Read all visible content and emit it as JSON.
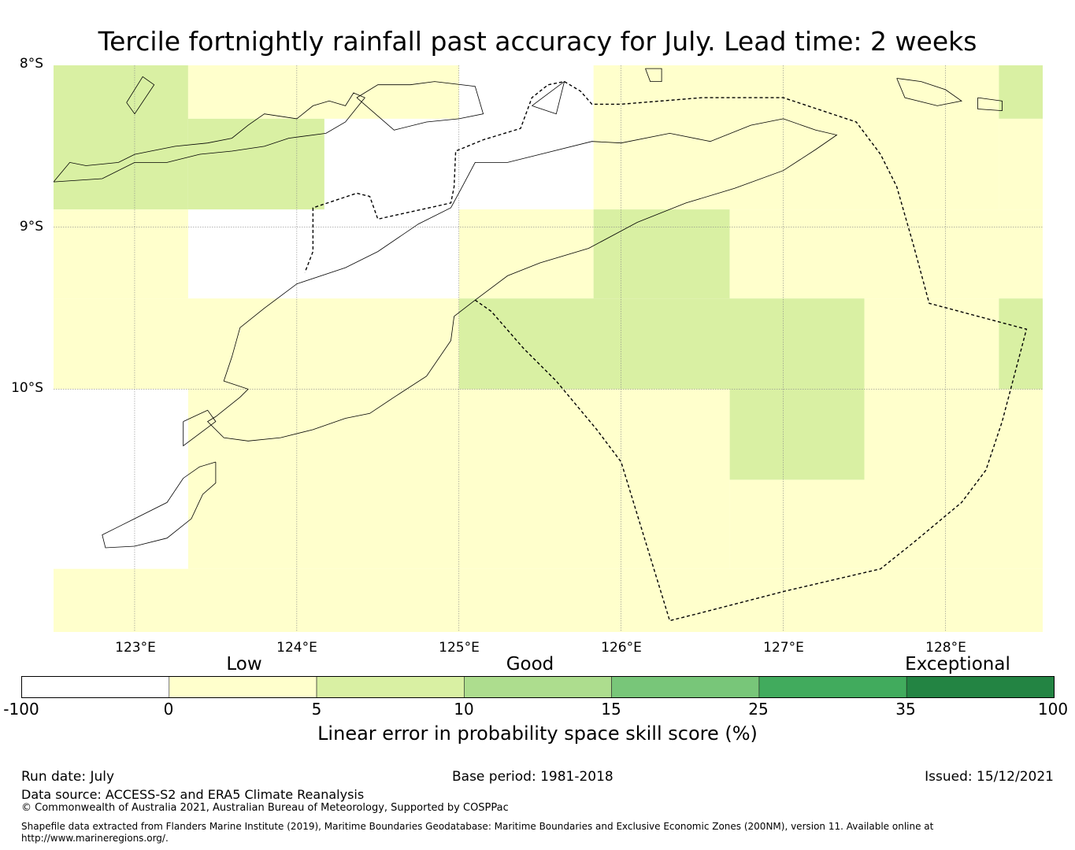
{
  "title": "Tercile fortnightly rainfall past accuracy for July. Lead time: 2 weeks",
  "map": {
    "lon_range": [
      122.5,
      128.6
    ],
    "lat_range": [
      -11.5,
      -8.0
    ],
    "lat_labels": [
      "8°S",
      "9°S",
      "10°S"
    ],
    "lon_labels": [
      "123°E",
      "124°E",
      "125°E",
      "126°E",
      "127°E",
      "128°E"
    ],
    "grid_cell_deg": 0.833,
    "cells": [
      {
        "lon": [
          122.5,
          123.33
        ],
        "lat": [
          -8.0,
          -8.89
        ],
        "category": "5-10"
      },
      {
        "lon": [
          123.33,
          125.0
        ],
        "lat": [
          -8.0,
          -8.33
        ],
        "category": "0-5"
      },
      {
        "lon": [
          123.33,
          124.17
        ],
        "lat": [
          -8.33,
          -8.89
        ],
        "category": "5-10"
      },
      {
        "lon": [
          125.83,
          128.33
        ],
        "lat": [
          -8.0,
          -8.89
        ],
        "category": "0-5"
      },
      {
        "lon": [
          128.33,
          128.6
        ],
        "lat": [
          -8.0,
          -8.33
        ],
        "category": "5-10"
      },
      {
        "lon": [
          128.33,
          128.6
        ],
        "lat": [
          -8.33,
          -8.89
        ],
        "category": "0-5"
      },
      {
        "lon": [
          122.5,
          123.33
        ],
        "lat": [
          -8.89,
          -9.44
        ],
        "category": "0-5"
      },
      {
        "lon": [
          125.0,
          125.83
        ],
        "lat": [
          -8.89,
          -9.44
        ],
        "category": "0-5"
      },
      {
        "lon": [
          125.83,
          126.67
        ],
        "lat": [
          -8.89,
          -9.44
        ],
        "category": "5-10"
      },
      {
        "lon": [
          126.67,
          128.6
        ],
        "lat": [
          -8.89,
          -9.44
        ],
        "category": "0-5"
      },
      {
        "lon": [
          122.5,
          125.0
        ],
        "lat": [
          -9.44,
          -10.0
        ],
        "category": "0-5"
      },
      {
        "lon": [
          125.0,
          127.5
        ],
        "lat": [
          -9.44,
          -10.0
        ],
        "category": "5-10"
      },
      {
        "lon": [
          127.5,
          128.33
        ],
        "lat": [
          -9.44,
          -10.0
        ],
        "category": "0-5"
      },
      {
        "lon": [
          128.33,
          128.6
        ],
        "lat": [
          -9.44,
          -10.0
        ],
        "category": "5-10"
      },
      {
        "lon": [
          123.33,
          126.67
        ],
        "lat": [
          -10.0,
          -11.11
        ],
        "category": "0-5"
      },
      {
        "lon": [
          126.67,
          127.5
        ],
        "lat": [
          -10.0,
          -10.56
        ],
        "category": "5-10"
      },
      {
        "lon": [
          126.67,
          127.5
        ],
        "lat": [
          -10.56,
          -11.11
        ],
        "category": "0-5"
      },
      {
        "lon": [
          127.5,
          128.6
        ],
        "lat": [
          -10.0,
          -11.11
        ],
        "category": "0-5"
      },
      {
        "lon": [
          122.5,
          128.6
        ],
        "lat": [
          -11.11,
          -11.5
        ],
        "category": "0-5"
      }
    ],
    "eez_boundary": [
      [
        125.1,
        -9.45
      ],
      [
        125.2,
        -9.52
      ],
      [
        125.4,
        -9.75
      ],
      [
        125.6,
        -9.95
      ],
      [
        125.85,
        -10.25
      ],
      [
        126.0,
        -10.45
      ],
      [
        126.3,
        -11.43
      ],
      [
        126.5,
        -11.38
      ],
      [
        127.0,
        -11.25
      ],
      [
        127.6,
        -11.11
      ],
      [
        127.8,
        -10.95
      ],
      [
        128.1,
        -10.7
      ],
      [
        128.25,
        -10.5
      ],
      [
        128.35,
        -10.2
      ],
      [
        128.5,
        -9.63
      ],
      [
        127.9,
        -9.47
      ],
      [
        127.8,
        -9.1
      ],
      [
        127.7,
        -8.75
      ],
      [
        127.6,
        -8.55
      ],
      [
        127.45,
        -8.35
      ],
      [
        127.0,
        -8.2
      ],
      [
        126.5,
        -8.2
      ],
      [
        126.0,
        -8.24
      ],
      [
        125.82,
        -8.24
      ],
      [
        125.75,
        -8.16
      ],
      [
        125.65,
        -8.1
      ],
      [
        125.55,
        -8.12
      ],
      [
        125.45,
        -8.2
      ],
      [
        125.38,
        -8.39
      ],
      [
        125.15,
        -8.46
      ],
      [
        124.98,
        -8.53
      ],
      [
        124.97,
        -8.75
      ],
      [
        124.95,
        -8.85
      ],
      [
        124.5,
        -8.95
      ],
      [
        124.45,
        -8.81
      ],
      [
        124.37,
        -8.79
      ],
      [
        124.1,
        -8.88
      ],
      [
        124.1,
        -9.15
      ],
      [
        124.05,
        -9.28
      ]
    ],
    "coastlines": [
      [
        [
          124.97,
          -9.55
        ],
        [
          125.1,
          -9.45
        ],
        [
          125.3,
          -9.3
        ],
        [
          125.5,
          -9.22
        ],
        [
          125.8,
          -9.13
        ],
        [
          126.1,
          -8.97
        ],
        [
          126.4,
          -8.85
        ],
        [
          126.7,
          -8.76
        ],
        [
          127.0,
          -8.65
        ],
        [
          127.2,
          -8.52
        ],
        [
          127.33,
          -8.43
        ],
        [
          127.2,
          -8.4
        ],
        [
          127.0,
          -8.33
        ],
        [
          126.8,
          -8.37
        ],
        [
          126.55,
          -8.47
        ],
        [
          126.3,
          -8.42
        ],
        [
          126.0,
          -8.48
        ],
        [
          125.82,
          -8.47
        ],
        [
          125.5,
          -8.55
        ],
        [
          125.3,
          -8.6
        ],
        [
          125.1,
          -8.6
        ],
        [
          125.02,
          -8.75
        ],
        [
          124.95,
          -8.88
        ],
        [
          124.75,
          -8.98
        ],
        [
          124.5,
          -9.15
        ],
        [
          124.3,
          -9.25
        ],
        [
          124.0,
          -9.35
        ],
        [
          123.8,
          -9.5
        ],
        [
          123.65,
          -9.62
        ],
        [
          123.6,
          -9.8
        ],
        [
          123.55,
          -9.95
        ],
        [
          123.7,
          -10.0
        ],
        [
          123.65,
          -10.05
        ],
        [
          123.5,
          -10.17
        ],
        [
          123.45,
          -10.2
        ],
        [
          123.55,
          -10.3
        ],
        [
          123.7,
          -10.32
        ],
        [
          123.9,
          -10.3
        ],
        [
          124.1,
          -10.25
        ],
        [
          124.3,
          -10.18
        ],
        [
          124.45,
          -10.15
        ],
        [
          124.6,
          -10.05
        ],
        [
          124.8,
          -9.92
        ],
        [
          124.95,
          -9.7
        ],
        [
          124.97,
          -9.55
        ]
      ],
      [
        [
          122.5,
          -8.72
        ],
        [
          122.6,
          -8.6
        ],
        [
          122.7,
          -8.62
        ],
        [
          122.9,
          -8.6
        ],
        [
          123.0,
          -8.55
        ],
        [
          123.1,
          -8.53
        ],
        [
          123.25,
          -8.5
        ],
        [
          123.45,
          -8.48
        ],
        [
          123.6,
          -8.45
        ],
        [
          123.7,
          -8.37
        ],
        [
          123.8,
          -8.3
        ],
        [
          124.0,
          -8.33
        ],
        [
          124.1,
          -8.25
        ],
        [
          124.2,
          -8.22
        ],
        [
          124.3,
          -8.25
        ],
        [
          124.35,
          -8.17
        ],
        [
          124.42,
          -8.2
        ],
        [
          124.3,
          -8.35
        ],
        [
          124.18,
          -8.42
        ],
        [
          123.95,
          -8.45
        ],
        [
          123.8,
          -8.5
        ],
        [
          123.6,
          -8.53
        ],
        [
          123.4,
          -8.55
        ],
        [
          123.2,
          -8.6
        ],
        [
          123.0,
          -8.6
        ],
        [
          122.8,
          -8.7
        ],
        [
          122.5,
          -8.72
        ]
      ],
      [
        [
          122.95,
          -8.23
        ],
        [
          123.05,
          -8.07
        ],
        [
          123.12,
          -8.12
        ],
        [
          123.0,
          -8.3
        ],
        [
          122.95,
          -8.23
        ]
      ],
      [
        [
          124.37,
          -8.2
        ],
        [
          124.5,
          -8.12
        ],
        [
          124.7,
          -8.12
        ],
        [
          124.85,
          -8.1
        ],
        [
          125.1,
          -8.13
        ],
        [
          125.15,
          -8.3
        ],
        [
          125.0,
          -8.33
        ],
        [
          124.8,
          -8.35
        ],
        [
          124.6,
          -8.4
        ],
        [
          124.37,
          -8.2
        ]
      ],
      [
        [
          125.45,
          -8.25
        ],
        [
          125.65,
          -8.1
        ],
        [
          125.6,
          -8.3
        ],
        [
          125.45,
          -8.25
        ]
      ],
      [
        [
          127.7,
          -8.08
        ],
        [
          127.85,
          -8.1
        ],
        [
          128.0,
          -8.15
        ],
        [
          128.1,
          -8.22
        ],
        [
          127.95,
          -8.25
        ],
        [
          127.75,
          -8.2
        ],
        [
          127.7,
          -8.08
        ]
      ],
      [
        [
          128.2,
          -8.2
        ],
        [
          128.35,
          -8.22
        ],
        [
          128.35,
          -8.28
        ],
        [
          128.2,
          -8.27
        ],
        [
          128.2,
          -8.2
        ]
      ],
      [
        [
          126.15,
          -8.02
        ],
        [
          126.25,
          -8.02
        ],
        [
          126.25,
          -8.1
        ],
        [
          126.18,
          -8.1
        ],
        [
          126.15,
          -8.02
        ]
      ],
      [
        [
          123.5,
          -10.45
        ],
        [
          123.4,
          -10.48
        ],
        [
          123.3,
          -10.55
        ],
        [
          123.2,
          -10.7
        ],
        [
          123.0,
          -10.8
        ],
        [
          122.9,
          -10.85
        ],
        [
          122.8,
          -10.9
        ],
        [
          122.82,
          -10.98
        ],
        [
          123.0,
          -10.97
        ],
        [
          123.2,
          -10.92
        ],
        [
          123.35,
          -10.8
        ],
        [
          123.42,
          -10.65
        ],
        [
          123.5,
          -10.58
        ],
        [
          123.5,
          -10.45
        ]
      ],
      [
        [
          123.3,
          -10.2
        ],
        [
          123.45,
          -10.13
        ],
        [
          123.5,
          -10.2
        ],
        [
          123.3,
          -10.35
        ],
        [
          123.3,
          -10.2
        ]
      ]
    ]
  },
  "colorbar": {
    "categories": [
      "Low",
      "Good",
      "Exceptional"
    ],
    "ticks": [
      "-100",
      "0",
      "5",
      "10",
      "15",
      "25",
      "35",
      "100"
    ],
    "colors": [
      "#ffffff",
      "#ffffcc",
      "#d9f0a3",
      "#addd8e",
      "#78c679",
      "#41ab5d",
      "#238443"
    ],
    "label": "Linear error in probability space skill score (%)"
  },
  "footer": {
    "run_date": "Run date: July",
    "base_period": "Base period: 1981-2018",
    "issued": "Issued: 15/12/2021",
    "data_source": "Data source: ACCESS-S2 and ERA5 Climate Reanalysis",
    "copyright": "© Commonwealth of Australia 2021, Australian Bureau of Meteorology, Supported by COSPPac",
    "shapefile_note": "Shapefile data extracted from Flanders Marine Institute (2019), Maritime Boundaries Geodatabase: Maritime Boundaries and Exclusive Economic Zones (200NM), version 11. Available online at http://www.marineregions.org/."
  }
}
